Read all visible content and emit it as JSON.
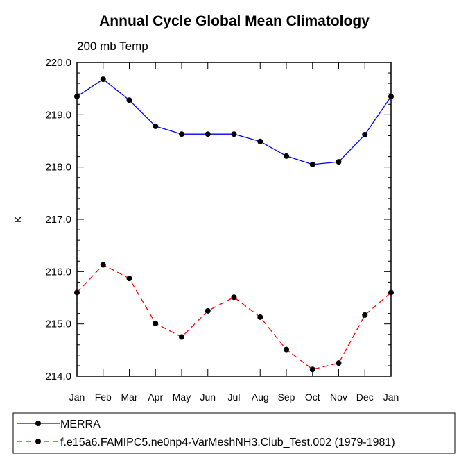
{
  "chart_data": {
    "type": "line",
    "title": "Annual Cycle Global Mean Climatology",
    "subtitle": "200 mb Temp",
    "ylabel": "K",
    "xlabel": "",
    "categories": [
      "Jan",
      "Feb",
      "Mar",
      "Apr",
      "May",
      "Jun",
      "Jul",
      "Aug",
      "Sep",
      "Oct",
      "Nov",
      "Dec",
      "Jan"
    ],
    "ylim": [
      214.0,
      220.0
    ],
    "yticks": [
      "214.0",
      "215.0",
      "216.0",
      "217.0",
      "218.0",
      "219.0",
      "220.0"
    ],
    "legend_position": "bottom",
    "series": [
      {
        "name": "MERRA",
        "color": "#0000ff",
        "line_style": "solid",
        "marker": "filled-circle",
        "values": [
          219.35,
          219.68,
          219.28,
          218.78,
          218.63,
          218.63,
          218.63,
          218.49,
          218.21,
          218.05,
          218.1,
          218.62,
          219.35
        ]
      },
      {
        "name": "f.e15a6.FAMIPC5.ne0np4-VarMeshNH3.Club_Test.002 (1979-1981)",
        "color": "#ff0000",
        "line_style": "dashed",
        "marker": "filled-circle",
        "values": [
          215.6,
          216.13,
          215.87,
          215.01,
          214.75,
          215.25,
          215.51,
          215.13,
          214.51,
          214.13,
          214.25,
          215.17,
          215.6
        ]
      }
    ]
  }
}
